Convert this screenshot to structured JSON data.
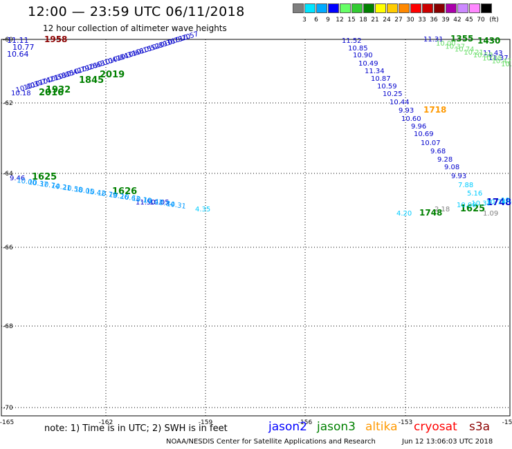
{
  "header": {
    "title": "12:00 — 23:59 UTC 06/11/2018",
    "subtitle": "12 hour collection of altimeter wave heights"
  },
  "legend": {
    "unit": "(ft)",
    "items": [
      {
        "label": "3",
        "color": "#7f7f7f"
      },
      {
        "label": "6",
        "color": "#00e5ff"
      },
      {
        "label": "9",
        "color": "#00aaff"
      },
      {
        "label": "12",
        "color": "#0000ff"
      },
      {
        "label": "15",
        "color": "#66ff66"
      },
      {
        "label": "18",
        "color": "#33cc33"
      },
      {
        "label": "21",
        "color": "#008000"
      },
      {
        "label": "24",
        "color": "#ffff00"
      },
      {
        "label": "27",
        "color": "#ffcc00"
      },
      {
        "label": "30",
        "color": "#ff8800"
      },
      {
        "label": "33",
        "color": "#ff0000"
      },
      {
        "label": "36",
        "color": "#cc0000"
      },
      {
        "label": "39",
        "color": "#880000"
      },
      {
        "label": "42",
        "color": "#aa00aa"
      },
      {
        "label": "45",
        "color": "#cc88ff"
      },
      {
        "label": "70",
        "color": "#ff88ff"
      },
      {
        "label": "",
        "color": "#000000"
      }
    ]
  },
  "axes": {
    "lon_ticks": [
      "-165",
      "-162",
      "-159",
      "-156",
      "-153",
      "-15"
    ],
    "lat_ticks": [
      "-60",
      "-62",
      "-64",
      "-66",
      "-68",
      "-70"
    ]
  },
  "wave_labels": [
    {
      "t": "11.11",
      "c": "#0000cc"
    },
    {
      "t": "10.77",
      "c": "#0000cc"
    },
    {
      "t": "10.64",
      "c": "#0000cc"
    },
    {
      "t": "1958",
      "c": "#8b0000"
    },
    {
      "t": "2019",
      "c": "#008000"
    },
    {
      "t": "1845",
      "c": "#008000"
    },
    {
      "t": "1932",
      "c": "#008000"
    },
    {
      "t": "2016",
      "c": "#008000"
    },
    {
      "t": "10.18",
      "c": "#0000cc"
    },
    {
      "t": "9.46",
      "c": "#0000cc"
    },
    {
      "t": "1625",
      "c": "#008000"
    },
    {
      "t": "1626",
      "c": "#008000"
    },
    {
      "t": "11.50",
      "c": "#0000cc"
    },
    {
      "t": "10.05",
      "c": "#0000cc"
    },
    {
      "t": "4.35",
      "c": "#00ccff"
    },
    {
      "t": "11.52",
      "c": "#0000cc"
    },
    {
      "t": "10.85",
      "c": "#0000cc"
    },
    {
      "t": "10.90",
      "c": "#0000cc"
    },
    {
      "t": "10.49",
      "c": "#0000cc"
    },
    {
      "t": "11.34",
      "c": "#0000cc"
    },
    {
      "t": "10.87",
      "c": "#0000cc"
    },
    {
      "t": "10.59",
      "c": "#0000cc"
    },
    {
      "t": "10.25",
      "c": "#0000cc"
    },
    {
      "t": "10.44",
      "c": "#0000cc"
    },
    {
      "t": "9.93",
      "c": "#0000cc"
    },
    {
      "t": "1718",
      "c": "#ff9900"
    },
    {
      "t": "10.60",
      "c": "#0000cc"
    },
    {
      "t": "9.96",
      "c": "#0000cc"
    },
    {
      "t": "10.69",
      "c": "#0000cc"
    },
    {
      "t": "10.07",
      "c": "#0000cc"
    },
    {
      "t": "9.68",
      "c": "#0000cc"
    },
    {
      "t": "9.28",
      "c": "#0000cc"
    },
    {
      "t": "9.08",
      "c": "#0000cc"
    },
    {
      "t": "9.93",
      "c": "#0000cc"
    },
    {
      "t": "7.88",
      "c": "#00ccff"
    },
    {
      "t": "5.16",
      "c": "#00ccff"
    },
    {
      "t": "4.20",
      "c": "#00ccff"
    },
    {
      "t": "1748",
      "c": "#008000"
    },
    {
      "t": "2.18",
      "c": "#808080"
    },
    {
      "t": "1625",
      "c": "#008000"
    },
    {
      "t": "1748",
      "c": "#0000cc"
    },
    {
      "t": "1.09",
      "c": "#808080"
    },
    {
      "t": "11.31",
      "c": "#0000cc"
    },
    {
      "t": "1355",
      "c": "#008000"
    },
    {
      "t": "1430",
      "c": "#008000"
    },
    {
      "t": "11.43",
      "c": "#0000cc"
    },
    {
      "t": "11.37",
      "c": "#0000cc"
    }
  ],
  "notes": {
    "note": "note:  1) Time is in UTC;  2) SWH is in feet",
    "sats": [
      {
        "name": "jason2",
        "color": "#0000ff"
      },
      {
        "name": "jason3",
        "color": "#008000"
      },
      {
        "name": "altika",
        "color": "#ff9900"
      },
      {
        "name": "cryosat",
        "color": "#ff0000"
      },
      {
        "name": "s3a",
        "color": "#8b0000"
      }
    ],
    "credit": "NOAA/NESDIS Center for Satellite Applications and Research",
    "stamp": "Jun 12 13:06:03 UTC 2018"
  }
}
